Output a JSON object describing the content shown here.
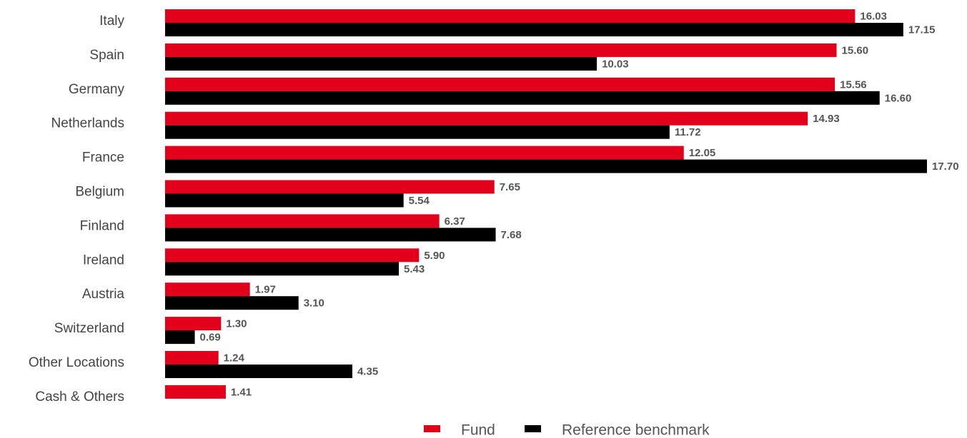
{
  "chart_data": {
    "type": "bar",
    "orientation": "horizontal",
    "categories": [
      "Italy",
      "Spain",
      "Germany",
      "Netherlands",
      "France",
      "Belgium",
      "Finland",
      "Ireland",
      "Austria",
      "Switzerland",
      "Other Locations",
      "Cash & Others"
    ],
    "series": [
      {
        "name": "Fund",
        "color": "#e2001a",
        "values": [
          16.03,
          15.6,
          15.56,
          14.93,
          12.05,
          7.65,
          6.37,
          5.9,
          1.97,
          1.3,
          1.24,
          1.41
        ],
        "labels": [
          "16.03",
          "15.60",
          "15.56",
          "14.93",
          "12.05",
          "7.65",
          "6.37",
          "5.90",
          "1.97",
          "1.30",
          "1.24",
          "1.41"
        ]
      },
      {
        "name": "Reference benchmark",
        "color": "#000000",
        "values": [
          17.15,
          10.03,
          16.6,
          11.72,
          17.7,
          5.54,
          7.68,
          5.43,
          3.1,
          0.69,
          4.35,
          null
        ],
        "labels": [
          "17.15",
          "10.03",
          "16.60",
          "11.72",
          "17.70",
          "5.54",
          "7.68",
          "5.43",
          "3.10",
          "0.69",
          "4.35",
          null
        ]
      }
    ],
    "xlim": [
      0,
      17.7
    ],
    "grid": false,
    "legend_position": "bottom-center"
  }
}
